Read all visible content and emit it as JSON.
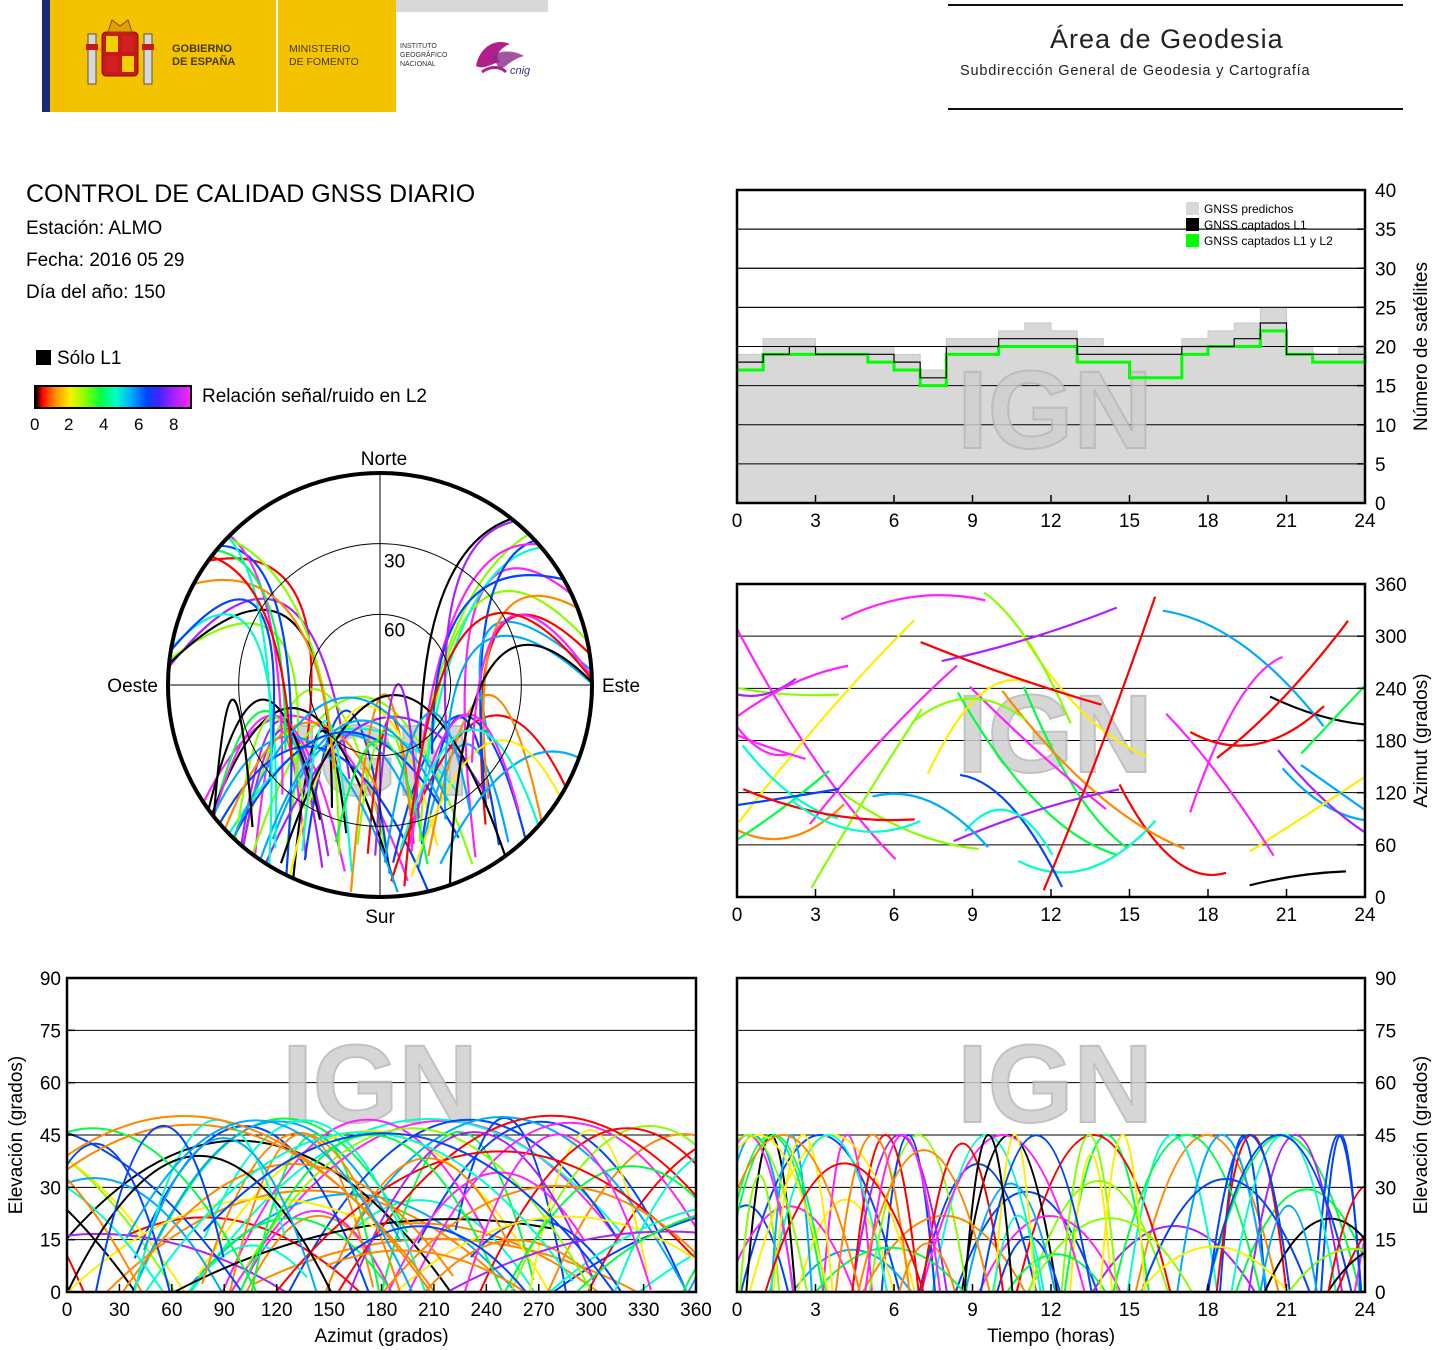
{
  "header": {
    "gov_line1": "GOBIERNO",
    "gov_line2": "DE ESPAÑA",
    "min_line1": "MINISTERIO",
    "min_line2": "DE FOMENTO",
    "ign_line1": "INSTITUTO",
    "ign_line2": "GEOGRÁFICO",
    "ign_line3": "NACIONAL",
    "cnig_logo_text": "cnig",
    "area_title": "Área de Geodesia",
    "area_subtitle": "Subdirección General de Geodesia y Cartografía"
  },
  "info": {
    "title": "CONTROL DE CALIDAD GNSS DIARIO",
    "station": "Estación: ALMO",
    "date": "Fecha: 2016 05 29",
    "doy": "Día del año: 150",
    "legend_l1": "Sólo L1",
    "colorbar_label": "Relación señal/ruido en L2",
    "colorbar_ticks": [
      "0",
      "2",
      "4",
      "6",
      "8"
    ]
  },
  "watermark": "IGN",
  "colors": {
    "l1_only": "#000000",
    "predicted": "#d8d8d8",
    "captured_l1": "#000000",
    "captured_l1_l2": "#00ff00",
    "snr_scale": [
      "#ff0000",
      "#ff8800",
      "#ffee00",
      "#88ff00",
      "#00ff44",
      "#00ffcc",
      "#00aaff",
      "#0044ff",
      "#aa22ff",
      "#ff22ff"
    ]
  },
  "chart_data": [
    {
      "id": "satellites",
      "type": "area",
      "title": "",
      "xlabel": "",
      "ylabel": "Número de satélites",
      "xlim": [
        0,
        24
      ],
      "ylim": [
        0,
        40
      ],
      "xticks": [
        "0",
        "3",
        "6",
        "9",
        "12",
        "15",
        "18",
        "21",
        "24"
      ],
      "yticks": [
        "0",
        "5",
        "10",
        "15",
        "20",
        "25",
        "30",
        "35",
        "40"
      ],
      "grid": true,
      "legend_position": "top-right",
      "legend": [
        "GNSS predichos",
        "GNSS captados L1",
        "GNSS captados L1 y L2"
      ],
      "x": [
        0,
        1,
        2,
        3,
        4,
        5,
        6,
        7,
        8,
        9,
        10,
        11,
        12,
        13,
        14,
        15,
        16,
        17,
        18,
        19,
        20,
        21,
        22,
        23,
        24
      ],
      "series": [
        {
          "name": "GNSS predichos",
          "values": [
            19,
            21,
            21,
            20,
            20,
            20,
            19,
            17,
            21,
            21,
            22,
            23,
            22,
            21,
            20,
            20,
            20,
            21,
            22,
            23,
            25,
            20,
            19,
            20,
            20
          ]
        },
        {
          "name": "GNSS captados L1",
          "values": [
            18,
            19,
            20,
            19,
            19,
            19,
            18,
            16,
            20,
            20,
            21,
            21,
            21,
            19,
            19,
            19,
            19,
            20,
            20,
            21,
            23,
            19,
            19,
            19,
            19
          ]
        },
        {
          "name": "GNSS captados L1 y L2",
          "values": [
            17,
            19,
            19,
            19,
            19,
            18,
            17,
            15,
            19,
            19,
            20,
            20,
            20,
            18,
            18,
            16,
            16,
            19,
            20,
            20,
            22,
            19,
            18,
            18,
            19
          ]
        }
      ]
    },
    {
      "id": "azimuth_time",
      "type": "scatter",
      "xlabel": "",
      "ylabel": "Azimut (grados)",
      "xlim": [
        0,
        24
      ],
      "ylim": [
        0,
        360
      ],
      "xticks": [
        "0",
        "3",
        "6",
        "9",
        "12",
        "15",
        "18",
        "21",
        "24"
      ],
      "yticks": [
        "0",
        "60",
        "120",
        "180",
        "240",
        "300",
        "360"
      ],
      "grid": true
    },
    {
      "id": "skyplot",
      "type": "scatter",
      "projection": "polar",
      "labels": {
        "north": "Norte",
        "south": "Sur",
        "east": "Este",
        "west": "Oeste"
      },
      "elevation_rings": [
        "30",
        "60"
      ]
    },
    {
      "id": "elev_azimuth",
      "type": "scatter",
      "xlabel": "Azimut (grados)",
      "ylabel": "Elevación (grados)",
      "xlim": [
        0,
        360
      ],
      "ylim": [
        0,
        90
      ],
      "xticks": [
        "0",
        "30",
        "60",
        "90",
        "120",
        "150",
        "180",
        "210",
        "240",
        "270",
        "300",
        "330",
        "360"
      ],
      "yticks": [
        "0",
        "15",
        "30",
        "45",
        "60",
        "75",
        "90"
      ],
      "grid": true
    },
    {
      "id": "elev_time",
      "type": "scatter",
      "xlabel": "Tiempo (horas)",
      "ylabel": "Elevación (grados)",
      "xlim": [
        0,
        24
      ],
      "ylim": [
        0,
        90
      ],
      "xticks": [
        "0",
        "3",
        "6",
        "9",
        "12",
        "15",
        "18",
        "21",
        "24"
      ],
      "yticks": [
        "0",
        "15",
        "30",
        "45",
        "60",
        "75",
        "90"
      ],
      "grid": true
    }
  ]
}
